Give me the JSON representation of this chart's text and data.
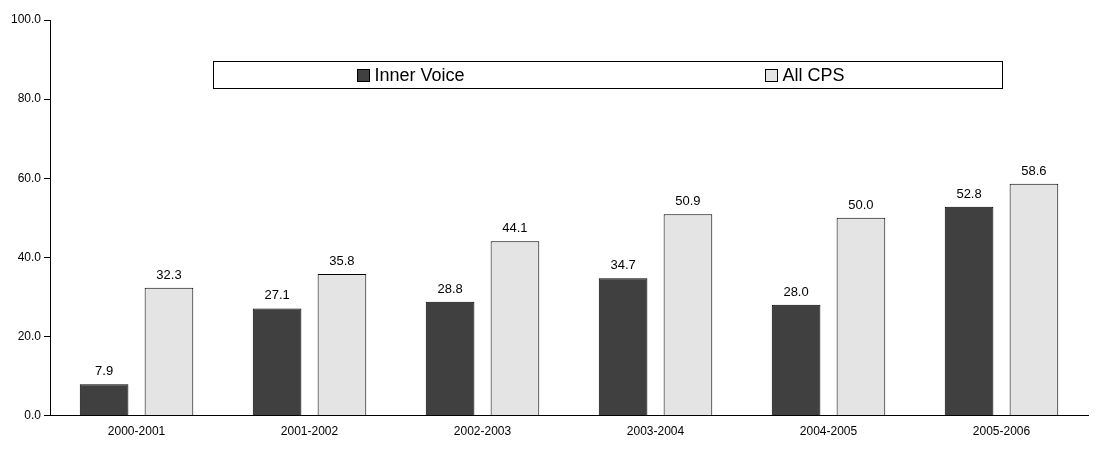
{
  "chart_data": {
    "type": "bar",
    "categories": [
      "2000-2001",
      "2001-2002",
      "2002-2003",
      "2003-2004",
      "2004-2005",
      "2005-2006"
    ],
    "series": [
      {
        "name": "Inner Voice",
        "color": "#404040",
        "values": [
          7.9,
          27.1,
          28.8,
          34.7,
          28.0,
          52.8
        ],
        "value_labels": [
          "7.9",
          "27.1",
          "28.8",
          "34.7",
          "28.0",
          "52.8"
        ]
      },
      {
        "name": "All CPS",
        "color": "#e4e4e4",
        "values": [
          32.3,
          35.8,
          44.1,
          50.9,
          50.0,
          58.6
        ],
        "value_labels": [
          "32.3",
          "35.8",
          "44.1",
          "50.9",
          "50.0",
          "58.6"
        ]
      }
    ],
    "ylim": [
      0,
      100
    ],
    "yticks": [
      {
        "value": 0,
        "label": "0.0"
      },
      {
        "value": 20,
        "label": "20.0"
      },
      {
        "value": 40,
        "label": "40.0"
      },
      {
        "value": 60,
        "label": "60.0"
      },
      {
        "value": 80,
        "label": "80.0"
      },
      {
        "value": 100,
        "label": "100.0"
      }
    ],
    "grid": false,
    "legend": "top"
  }
}
